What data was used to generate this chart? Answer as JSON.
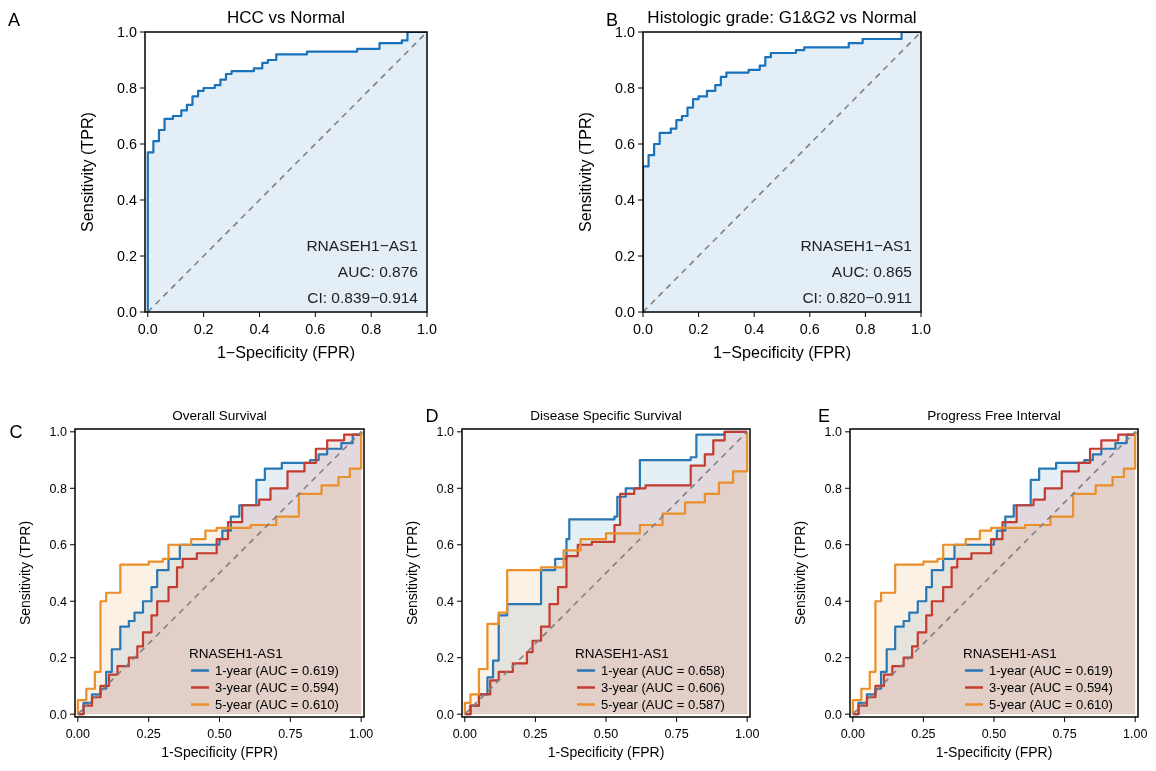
{
  "chart_data": [
    {
      "type": "step",
      "title": "HCC vs Normal",
      "xlabel": "1−Specificity (FPR)",
      "ylabel": "Sensitivity (TPR)",
      "xlim": [
        -0.01,
        1
      ],
      "ylim": [
        0,
        1
      ],
      "xticks": [
        {
          "value": 0,
          "label": "0.0"
        },
        {
          "value": 0.2,
          "label": "0.2"
        },
        {
          "value": 0.4,
          "label": "0.4"
        },
        {
          "value": 0.6,
          "label": "0.6"
        },
        {
          "value": 0.8,
          "label": "0.8"
        },
        {
          "value": 1,
          "label": "1.0"
        }
      ],
      "yticks": [
        {
          "value": 0,
          "label": "0.0"
        },
        {
          "value": 0.2,
          "label": "0.2"
        },
        {
          "value": 0.4,
          "label": "0.4"
        },
        {
          "value": 0.6,
          "label": "0.6"
        },
        {
          "value": 0.8,
          "label": "0.8"
        },
        {
          "value": 1,
          "label": "1.0"
        }
      ],
      "annotations": [
        "A",
        "RNASEH1−AS1",
        "AUC: 0.876",
        "CI: 0.839−0.914"
      ],
      "series": [
        {
          "color": "#1a72bb",
          "x": [
            0,
            0,
            0.02,
            0.04,
            0.06,
            0.09,
            0.12,
            0.14,
            0.16,
            0.18,
            0.2,
            0.24,
            0.26,
            0.28,
            0.3,
            0.38,
            0.41,
            0.43,
            0.46,
            0.57,
            0.75,
            0.83,
            0.91,
            0.93,
            1
          ],
          "values": [
            0,
            0.57,
            0.61,
            0.65,
            0.69,
            0.7,
            0.72,
            0.74,
            0.77,
            0.79,
            0.8,
            0.81,
            0.83,
            0.85,
            0.86,
            0.87,
            0.89,
            0.9,
            0.92,
            0.93,
            0.94,
            0.96,
            0.97,
            1,
            1
          ]
        },
        {
          "type": "line",
          "color": "#808080",
          "line_style": "dashed",
          "x": [
            0,
            1
          ],
          "values": [
            0,
            1
          ]
        }
      ]
    },
    {
      "type": "step",
      "title": "Histologic grade: G1&G2 vs Normal",
      "xlabel": "1−Specificity (FPR)",
      "ylabel": "Sensitivity (TPR)",
      "xlim": [
        0,
        1
      ],
      "ylim": [
        0,
        1
      ],
      "xticks": [
        {
          "value": 0,
          "label": "0.0"
        },
        {
          "value": 0.2,
          "label": "0.2"
        },
        {
          "value": 0.4,
          "label": "0.4"
        },
        {
          "value": 0.6,
          "label": "0.6"
        },
        {
          "value": 0.8,
          "label": "0.8"
        },
        {
          "value": 1,
          "label": "1.0"
        }
      ],
      "yticks": [
        {
          "value": 0,
          "label": "0.0"
        },
        {
          "value": 0.2,
          "label": "0.2"
        },
        {
          "value": 0.4,
          "label": "0.4"
        },
        {
          "value": 0.6,
          "label": "0.6"
        },
        {
          "value": 0.8,
          "label": "0.8"
        },
        {
          "value": 1,
          "label": "1.0"
        }
      ],
      "annotations": [
        "B",
        "RNASEH1−AS1",
        "AUC: 0.865",
        "CI: 0.820−0.911"
      ],
      "series": [
        {
          "color": "#1a72bb",
          "x": [
            0,
            0,
            0.02,
            0.04,
            0.06,
            0.1,
            0.12,
            0.14,
            0.16,
            0.18,
            0.2,
            0.23,
            0.26,
            0.28,
            0.3,
            0.38,
            0.42,
            0.44,
            0.46,
            0.55,
            0.58,
            0.74,
            0.79,
            0.93,
            1
          ],
          "values": [
            0,
            0.52,
            0.56,
            0.6,
            0.64,
            0.655,
            0.685,
            0.7,
            0.73,
            0.76,
            0.77,
            0.79,
            0.81,
            0.84,
            0.855,
            0.865,
            0.88,
            0.91,
            0.925,
            0.935,
            0.945,
            0.96,
            0.975,
            1,
            1
          ]
        },
        {
          "type": "line",
          "color": "#808080",
          "line_style": "dashed",
          "x": [
            0,
            1
          ],
          "values": [
            0,
            1
          ]
        }
      ]
    },
    {
      "type": "step",
      "title": "Overall Survival",
      "xlabel": "1-Specificity (FPR)",
      "ylabel": "Sensitivity (TPR)",
      "xlim": [
        -0.01,
        1.01
      ],
      "ylim": [
        -0.01,
        1.01
      ],
      "xticks": [
        {
          "value": 0,
          "label": "0.00"
        },
        {
          "value": 0.25,
          "label": "0.25"
        },
        {
          "value": 0.5,
          "label": "0.50"
        },
        {
          "value": 0.75,
          "label": "0.75"
        },
        {
          "value": 1,
          "label": "1.00"
        }
      ],
      "yticks": [
        {
          "value": 0,
          "label": "0.0"
        },
        {
          "value": 0.2,
          "label": "0.2"
        },
        {
          "value": 0.4,
          "label": "0.4"
        },
        {
          "value": 0.6,
          "label": "0.6"
        },
        {
          "value": 0.8,
          "label": "0.8"
        },
        {
          "value": 1,
          "label": "1.0"
        }
      ],
      "annotations": [
        "C"
      ],
      "legend": "bottom right",
      "legend_title": "RNASEH1-AS1",
      "series": [
        {
          "name": "1-year (AUC = 0.619)",
          "color": "#2878b5",
          "x": [
            0,
            0.02,
            0.05,
            0.08,
            0.1,
            0.12,
            0.15,
            0.18,
            0.2,
            0.23,
            0.26,
            0.28,
            0.32,
            0.36,
            0.5,
            0.51,
            0.54,
            0.57,
            0.63,
            0.66,
            0.72,
            0.82,
            0.85,
            0.88,
            0.93,
            0.97,
            1
          ],
          "values": [
            0,
            0.04,
            0.07,
            0.09,
            0.15,
            0.23,
            0.31,
            0.33,
            0.36,
            0.4,
            0.45,
            0.51,
            0.55,
            0.6,
            0.62,
            0.65,
            0.7,
            0.74,
            0.83,
            0.87,
            0.89,
            0.9,
            0.92,
            0.94,
            0.96,
            0.99,
            1
          ]
        },
        {
          "name": "3-year (AUC = 0.594)",
          "color": "#c43b2f",
          "x": [
            0,
            0.02,
            0.05,
            0.08,
            0.11,
            0.14,
            0.18,
            0.21,
            0.23,
            0.26,
            0.28,
            0.32,
            0.35,
            0.37,
            0.42,
            0.49,
            0.53,
            0.58,
            0.64,
            0.68,
            0.74,
            0.8,
            0.84,
            0.88,
            0.94,
            1
          ],
          "values": [
            0,
            0.03,
            0.06,
            0.1,
            0.14,
            0.17,
            0.2,
            0.24,
            0.29,
            0.35,
            0.4,
            0.45,
            0.52,
            0.55,
            0.57,
            0.62,
            0.68,
            0.74,
            0.76,
            0.8,
            0.86,
            0.89,
            0.94,
            0.97,
            0.99,
            1
          ]
        },
        {
          "name": "5-year (AUC = 0.610)",
          "color": "#ea8f29",
          "x": [
            0,
            0,
            0.03,
            0.06,
            0.08,
            0.1,
            0.15,
            0.25,
            0.3,
            0.32,
            0.4,
            0.45,
            0.49,
            0.61,
            0.7,
            0.78,
            0.86,
            0.92,
            0.96,
            1,
            1
          ],
          "values": [
            0,
            0.05,
            0.09,
            0.15,
            0.4,
            0.43,
            0.53,
            0.54,
            0.55,
            0.6,
            0.62,
            0.65,
            0.66,
            0.67,
            0.7,
            0.78,
            0.81,
            0.84,
            0.87,
            0.88,
            1
          ]
        },
        {
          "type": "line",
          "color": "#808080",
          "line_style": "dashed",
          "x": [
            0,
            1
          ],
          "values": [
            0,
            1
          ]
        }
      ]
    },
    {
      "type": "step",
      "title": "Disease Specific Survival",
      "xlabel": "1-Specificity (FPR)",
      "ylabel": "Sensitivity (TPR)",
      "xlim": [
        -0.01,
        1.01
      ],
      "ylim": [
        -0.01,
        1.01
      ],
      "xticks": [
        {
          "value": 0,
          "label": "0.00"
        },
        {
          "value": 0.25,
          "label": "0.25"
        },
        {
          "value": 0.5,
          "label": "0.50"
        },
        {
          "value": 0.75,
          "label": "0.75"
        },
        {
          "value": 1,
          "label": "1.00"
        }
      ],
      "yticks": [
        {
          "value": 0,
          "label": "0.0"
        },
        {
          "value": 0.2,
          "label": "0.2"
        },
        {
          "value": 0.4,
          "label": "0.4"
        },
        {
          "value": 0.6,
          "label": "0.6"
        },
        {
          "value": 0.8,
          "label": "0.8"
        },
        {
          "value": 1,
          "label": "1.0"
        }
      ],
      "annotations": [
        "D"
      ],
      "legend": "bottom right",
      "legend_title": "RNASEH1-AS1",
      "series": [
        {
          "name": "1-year (AUC = 0.658)",
          "color": "#2878b5",
          "x": [
            0,
            0.02,
            0.05,
            0.08,
            0.1,
            0.12,
            0.15,
            0.27,
            0.32,
            0.36,
            0.37,
            0.53,
            0.54,
            0.57,
            0.62,
            0.8,
            0.82,
            0.92,
            1
          ],
          "values": [
            0,
            0.03,
            0.07,
            0.13,
            0.19,
            0.35,
            0.39,
            0.51,
            0.55,
            0.62,
            0.69,
            0.7,
            0.77,
            0.8,
            0.9,
            0.91,
            0.99,
            1,
            1
          ]
        },
        {
          "name": "3-year (AUC = 0.606)",
          "color": "#c43b2f",
          "x": [
            0,
            0.02,
            0.05,
            0.09,
            0.12,
            0.17,
            0.22,
            0.24,
            0.27,
            0.3,
            0.33,
            0.36,
            0.4,
            0.45,
            0.53,
            0.55,
            0.6,
            0.64,
            0.8,
            0.85,
            0.88,
            0.92,
            1
          ],
          "values": [
            0,
            0.03,
            0.07,
            0.12,
            0.15,
            0.18,
            0.22,
            0.26,
            0.31,
            0.39,
            0.45,
            0.56,
            0.6,
            0.61,
            0.67,
            0.78,
            0.8,
            0.81,
            0.88,
            0.92,
            0.97,
            1,
            1
          ]
        },
        {
          "name": "5-year (AUC = 0.587)",
          "color": "#ea8f29",
          "x": [
            0,
            0,
            0.02,
            0.05,
            0.08,
            0.12,
            0.15,
            0.27,
            0.35,
            0.41,
            0.5,
            0.62,
            0.7,
            0.78,
            0.85,
            0.9,
            0.95,
            1,
            1
          ],
          "values": [
            0,
            0.04,
            0.07,
            0.16,
            0.32,
            0.36,
            0.51,
            0.52,
            0.58,
            0.62,
            0.64,
            0.67,
            0.71,
            0.75,
            0.78,
            0.82,
            0.86,
            0.87,
            1
          ]
        },
        {
          "type": "line",
          "color": "#808080",
          "line_style": "dashed",
          "x": [
            0,
            1
          ],
          "values": [
            0,
            1
          ]
        }
      ]
    },
    {
      "type": "step",
      "title": "Progress Free Interval",
      "xlabel": "1-Specificity (FPR)",
      "ylabel": "Sensitivity (TPR)",
      "xlim": [
        -0.01,
        1.01
      ],
      "ylim": [
        -0.01,
        1.01
      ],
      "xticks": [
        {
          "value": 0,
          "label": "0.00"
        },
        {
          "value": 0.25,
          "label": "0.25"
        },
        {
          "value": 0.5,
          "label": "0.50"
        },
        {
          "value": 0.75,
          "label": "0.75"
        },
        {
          "value": 1,
          "label": "1.00"
        }
      ],
      "yticks": [
        {
          "value": 0,
          "label": "0.0"
        },
        {
          "value": 0.2,
          "label": "0.2"
        },
        {
          "value": 0.4,
          "label": "0.4"
        },
        {
          "value": 0.6,
          "label": "0.6"
        },
        {
          "value": 0.8,
          "label": "0.8"
        },
        {
          "value": 1,
          "label": "1.0"
        }
      ],
      "annotations": [
        "E"
      ],
      "legend": "bottom right",
      "legend_title": "RNASEH1-AS1",
      "series": [
        {
          "name": "1-year (AUC = 0.619)",
          "color": "#2878b5",
          "x": [
            0,
            0.02,
            0.05,
            0.08,
            0.1,
            0.12,
            0.15,
            0.18,
            0.2,
            0.23,
            0.26,
            0.28,
            0.32,
            0.36,
            0.5,
            0.51,
            0.54,
            0.57,
            0.63,
            0.66,
            0.72,
            0.82,
            0.85,
            0.88,
            0.93,
            0.97,
            1
          ],
          "values": [
            0,
            0.04,
            0.07,
            0.09,
            0.15,
            0.23,
            0.31,
            0.33,
            0.36,
            0.4,
            0.45,
            0.51,
            0.55,
            0.6,
            0.62,
            0.65,
            0.7,
            0.74,
            0.83,
            0.87,
            0.89,
            0.9,
            0.92,
            0.94,
            0.96,
            0.99,
            1
          ]
        },
        {
          "name": "3-year (AUC = 0.594)",
          "color": "#c43b2f",
          "x": [
            0,
            0.02,
            0.05,
            0.08,
            0.11,
            0.14,
            0.18,
            0.21,
            0.23,
            0.26,
            0.28,
            0.32,
            0.35,
            0.37,
            0.42,
            0.49,
            0.53,
            0.58,
            0.64,
            0.68,
            0.74,
            0.8,
            0.84,
            0.88,
            0.94,
            1
          ],
          "values": [
            0,
            0.03,
            0.06,
            0.1,
            0.14,
            0.17,
            0.2,
            0.24,
            0.29,
            0.35,
            0.4,
            0.45,
            0.52,
            0.55,
            0.57,
            0.62,
            0.68,
            0.74,
            0.76,
            0.8,
            0.86,
            0.89,
            0.94,
            0.97,
            0.99,
            1
          ]
        },
        {
          "name": "5-year (AUC = 0.610)",
          "color": "#ea8f29",
          "x": [
            0,
            0,
            0.03,
            0.06,
            0.08,
            0.1,
            0.15,
            0.25,
            0.3,
            0.32,
            0.4,
            0.45,
            0.49,
            0.61,
            0.7,
            0.78,
            0.86,
            0.92,
            0.96,
            1,
            1
          ],
          "values": [
            0,
            0.05,
            0.09,
            0.15,
            0.4,
            0.43,
            0.53,
            0.54,
            0.55,
            0.6,
            0.62,
            0.65,
            0.66,
            0.67,
            0.7,
            0.78,
            0.81,
            0.84,
            0.87,
            0.88,
            1
          ]
        },
        {
          "type": "line",
          "color": "#808080",
          "line_style": "dashed",
          "x": [
            0,
            1
          ],
          "values": [
            0,
            1
          ]
        }
      ]
    }
  ]
}
